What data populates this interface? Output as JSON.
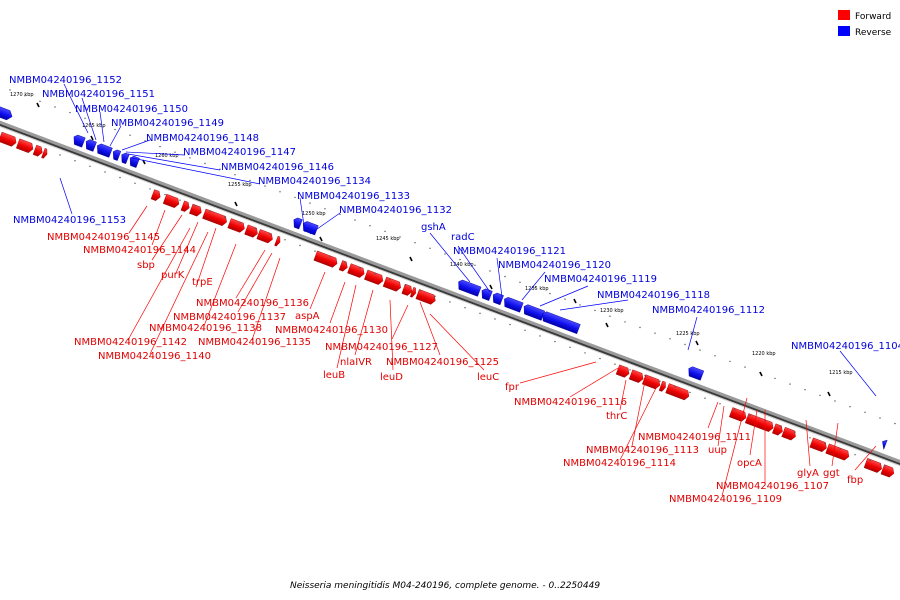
{
  "caption": "Neisseria meningitidis M04-240196, complete genome. - 0..2250449",
  "legend": [
    {
      "label": "Forward",
      "color": "#ff0000"
    },
    {
      "label": "Reverse",
      "color": "#0000ff"
    }
  ],
  "ticks": [
    "1270 kbp",
    "1265 kbp",
    "1260 kbp",
    "1255 kbp",
    "1250 kbp",
    "1245 kbp",
    "1240 kbp",
    "1235 kbp",
    "1230 kbp",
    "1225 kbp",
    "1220 kbp",
    "1215 kbp"
  ],
  "reverse_labels": [
    "NMBM04240196_1152",
    "NMBM04240196_1151",
    "NMBM04240196_1150",
    "NMBM04240196_1149",
    "NMBM04240196_1148",
    "NMBM04240196_1147",
    "NMBM04240196_1146",
    "NMBM04240196_1134",
    "NMBM04240196_1133",
    "NMBM04240196_1132",
    "NMBM04240196_1153",
    "gshA",
    "radC",
    "NMBM04240196_1121",
    "NMBM04240196_1120",
    "NMBM04240196_1119",
    "NMBM04240196_1118",
    "NMBM04240196_1112",
    "NMBM04240196_1104"
  ],
  "forward_labels": [
    "NMBM04240196_1145",
    "NMBM04240196_1144",
    "sbp",
    "purK",
    "trpE",
    "NMBM04240196_1136",
    "NMBM04240196_1137",
    "NMBM04240196_1138",
    "NMBM04240196_1142",
    "NMBM04240196_1135",
    "NMBM04240196_1140",
    "aspA",
    "NMBM04240196_1130",
    "NMBM04240196_1127",
    "nlaIVR",
    "NMBM04240196_1125",
    "leuB",
    "leuD",
    "leuC",
    "fpr",
    "NMBM04240196_1116",
    "thrC",
    "NMBM04240196_1111",
    "NMBM04240196_1113",
    "uup",
    "NMBM04240196_1114",
    "opcA",
    "glyA",
    "ggt",
    "NMBM04240196_1107",
    "fbp",
    "NMBM04240196_1109"
  ]
}
